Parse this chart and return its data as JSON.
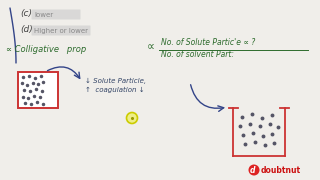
{
  "bg_color": "#f0eeea",
  "c_label": "(c)",
  "c_text": "lower",
  "d_label": "(d)",
  "d_text": "Higher or lower",
  "colligative_text": "∝ Colligative   prop",
  "proportional": "∝",
  "numerator": "No. of Solute Partic'e ∝ ?",
  "denominator": "No. of solvent Part:",
  "arrow_text": "↓ Solute Particle,",
  "arrow_text2": "↑  coagulation ↓",
  "box1_color": "#cc3333",
  "box2_color": "#cc3333",
  "dot_color": "#555566",
  "text_color_dark": "#334466",
  "text_color_green": "#2d6b2d",
  "bracket_color": "#334488",
  "arrow_color": "#334488",
  "yellow_circle_edge": "#cccc00",
  "yellow_circle_face": "#eeee88"
}
